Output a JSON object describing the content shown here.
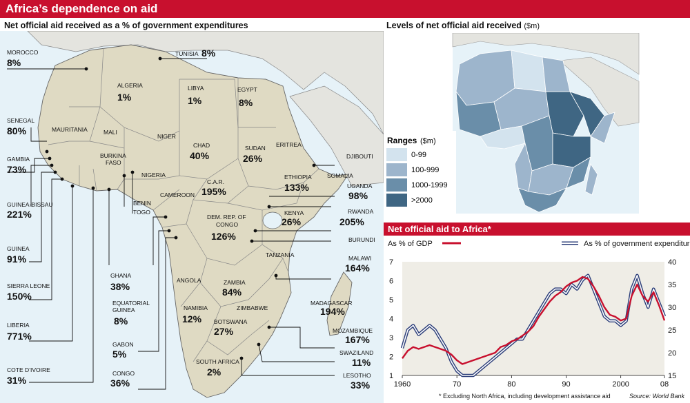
{
  "title": "Africa’s dependence on aid",
  "left_panel": {
    "subtitle": "Net official aid received as a % of government expenditures",
    "countries": [
      {
        "name": "MOROCCO",
        "value": "8%"
      },
      {
        "name": "TUNISIA",
        "value": "8%"
      },
      {
        "name": "ALGERIA",
        "value": "1%"
      },
      {
        "name": "LIBYA",
        "value": "1%"
      },
      {
        "name": "EGYPT",
        "value": "8%"
      },
      {
        "name": "SENEGAL",
        "value": "80%"
      },
      {
        "name": "GAMBIA",
        "value": "73%"
      },
      {
        "name": "CHAD",
        "value": "40%"
      },
      {
        "name": "SUDAN",
        "value": "26%"
      },
      {
        "name": "ETHIOPIA",
        "value": "133%"
      },
      {
        "name": "C.A.R.",
        "value": "195%"
      },
      {
        "name": "GUINEA-BISSAU",
        "value": "221%"
      },
      {
        "name": "UGANDA",
        "value": "98%"
      },
      {
        "name": "KENYA",
        "value": "26%"
      },
      {
        "name": "RWANDA",
        "value": "205%"
      },
      {
        "name": "DEM. REP. OF CONGO",
        "value": "126%"
      },
      {
        "name": "GUINEA",
        "value": "91%"
      },
      {
        "name": "MALAWI",
        "value": "164%"
      },
      {
        "name": "SIERRA LEONE",
        "value": "150%"
      },
      {
        "name": "GHANA",
        "value": "38%"
      },
      {
        "name": "ZAMBIA",
        "value": "84%"
      },
      {
        "name": "MADAGASCAR",
        "value": "194%"
      },
      {
        "name": "EQUATORIAL GUINEA",
        "value": "8%"
      },
      {
        "name": "NAMIBIA",
        "value": "12%"
      },
      {
        "name": "LIBERIA",
        "value": "771%"
      },
      {
        "name": "BOTSWANA",
        "value": "27%"
      },
      {
        "name": "MOZAMBIQUE",
        "value": "167%"
      },
      {
        "name": "GABON",
        "value": "5%"
      },
      {
        "name": "SWAZILAND",
        "value": "11%"
      },
      {
        "name": "COTE D’IVOIRE",
        "value": "31%"
      },
      {
        "name": "CONGO",
        "value": "36%"
      },
      {
        "name": "SOUTH AFRICA",
        "value": "2%"
      },
      {
        "name": "LESOTHO",
        "value": "33%"
      }
    ],
    "unlabeled_names": [
      "MAURITANIA",
      "MALI",
      "NIGER",
      "BURKINA FASO",
      "NIGERIA",
      "BENIN",
      "TOGO",
      "CAMEROON",
      "ERITREA",
      "DJIBOUTI",
      "SOMALIA",
      "BURUNDI",
      "TANZANIA",
      "ANGOLA",
      "ZIMBABWE"
    ]
  },
  "right_map": {
    "subtitle": "Levels of net official aid received",
    "unit": "($m)",
    "legend_title": "Ranges",
    "legend_unit": "($m)",
    "ranges": [
      {
        "label": "0-99",
        "color": "#d3e3ee"
      },
      {
        "label": "100-999",
        "color": "#9db5cc"
      },
      {
        "label": "1000-1999",
        "color": "#6a8ea9"
      },
      {
        "label": ">2000",
        "color": "#3f6683"
      }
    ]
  },
  "chart_title": "Net official aid to Africa*",
  "chart_data": {
    "type": "line",
    "title": "Net official aid to Africa*",
    "x": [
      1960,
      1961,
      1962,
      1963,
      1964,
      1965,
      1966,
      1967,
      1968,
      1969,
      1970,
      1971,
      1972,
      1973,
      1974,
      1975,
      1976,
      1977,
      1978,
      1979,
      1980,
      1981,
      1982,
      1983,
      1984,
      1985,
      1986,
      1987,
      1988,
      1989,
      1990,
      1991,
      1992,
      1993,
      1994,
      1995,
      1996,
      1997,
      1998,
      1999,
      2000,
      2001,
      2002,
      2003,
      2004,
      2005,
      2006,
      2007,
      2008
    ],
    "series": [
      {
        "name": "As % of GDP",
        "axis": "left",
        "color": "#c8102e",
        "values": [
          1.9,
          2.3,
          2.5,
          2.4,
          2.5,
          2.6,
          2.5,
          2.4,
          2.3,
          2.1,
          1.8,
          1.6,
          1.7,
          1.8,
          1.9,
          2.0,
          2.1,
          2.2,
          2.5,
          2.6,
          2.8,
          2.9,
          3.1,
          3.3,
          3.6,
          4.1,
          4.5,
          4.9,
          5.2,
          5.4,
          5.7,
          5.9,
          6.0,
          6.2,
          6.1,
          5.7,
          5.2,
          4.6,
          4.2,
          4.1,
          3.9,
          4.0,
          5.2,
          5.8,
          5.2,
          4.9,
          5.4,
          4.7,
          3.9
        ]
      },
      {
        "name": "As % of government expenditures",
        "axis": "right",
        "color": "#2d3f7a",
        "values": [
          21,
          25,
          26,
          24,
          25,
          26,
          25,
          23,
          21,
          18,
          16,
          15,
          15,
          15,
          16,
          17,
          18,
          19,
          20,
          21,
          22,
          23,
          23,
          25,
          27,
          29,
          31,
          33,
          34,
          34,
          33,
          35,
          34,
          36,
          37,
          34,
          31,
          28,
          27,
          27,
          26,
          27,
          34,
          37,
          33,
          30,
          34,
          31,
          28
        ]
      }
    ],
    "ylim_left": [
      1,
      7
    ],
    "ylim_right": [
      15,
      40
    ],
    "yticks_left": [
      "1",
      "2",
      "3",
      "4",
      "5",
      "6",
      "7"
    ],
    "yticks_right": [
      "15",
      "20",
      "25",
      "30",
      "35",
      "40"
    ],
    "xtick_labels": [
      "1960",
      "70",
      "80",
      "90",
      "2000",
      "08"
    ],
    "xtick_values": [
      1960,
      1970,
      1980,
      1990,
      2000,
      2008
    ],
    "footnote": "* Excluding North Africa, including development assistance aid",
    "source": "Source: World Bank"
  }
}
